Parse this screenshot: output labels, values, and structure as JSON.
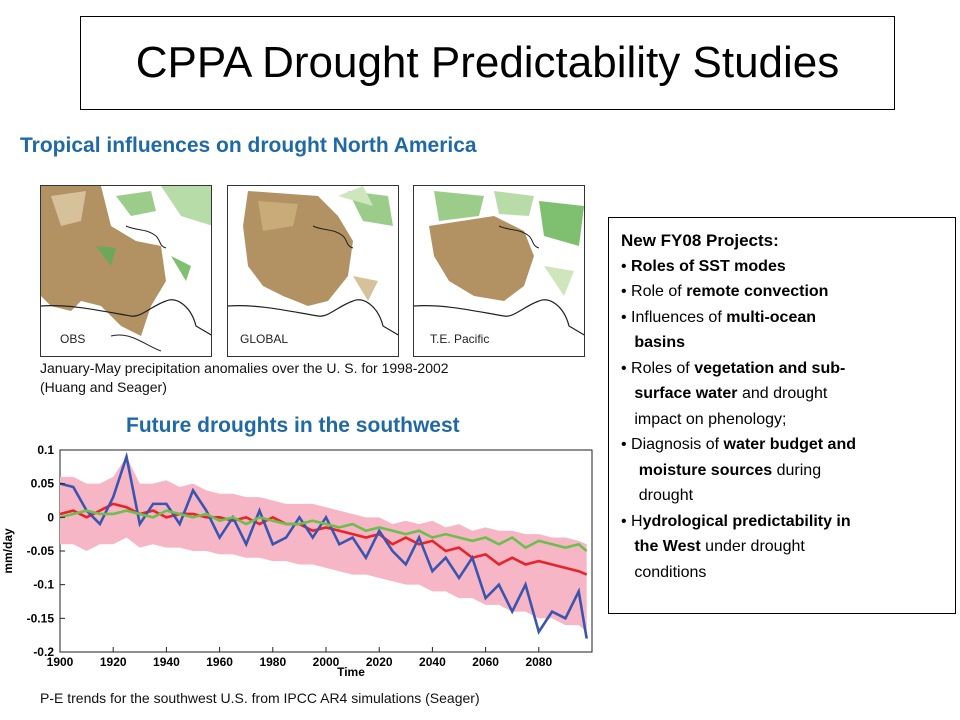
{
  "title": "CPPA Drought Predictability Studies",
  "tropical_heading": "Tropical influences on drought North America",
  "maps": [
    {
      "label": "OBS"
    },
    {
      "label": "GLOBAL"
    },
    {
      "label": "T.E. Pacific"
    }
  ],
  "map_caption_line1": "January-May precipitation anomalies over the U. S. for 1998-2002",
  "map_caption_line2": "(Huang and Seager)",
  "future_heading": "Future droughts in the southwest",
  "chart_caption": "P-E trends for the southwest U.S. from IPCC AR4 simulations (Seager)",
  "projects": {
    "title": "New FY08 Projects:",
    "items": [
      {
        "lines": [
          [
            "• ",
            ""
          ],
          [
            "Roles of SST modes",
            "b"
          ]
        ]
      },
      {
        "lines": [
          [
            "• Role of ",
            ""
          ],
          [
            "remote convection",
            "b"
          ]
        ]
      },
      {
        "lines": [
          [
            "• Influences of ",
            ""
          ],
          [
            "multi-ocean",
            "b"
          ]
        ]
      },
      {
        "lines": [
          [
            "   ",
            ""
          ],
          [
            "basins",
            "b"
          ]
        ]
      },
      {
        "lines": [
          [
            "• Roles of ",
            ""
          ],
          [
            "vegetation and sub-",
            "b"
          ]
        ]
      },
      {
        "lines": [
          [
            "   ",
            ""
          ],
          [
            "surface water",
            "b"
          ],
          [
            " and drought",
            ""
          ]
        ]
      },
      {
        "lines": [
          [
            "   impact on phenology;",
            ""
          ]
        ]
      },
      {
        "lines": [
          [
            "• Diagnosis of ",
            ""
          ],
          [
            "water budget and",
            "b"
          ]
        ]
      },
      {
        "lines": [
          [
            "    ",
            ""
          ],
          [
            "moisture sources",
            "b"
          ],
          [
            " during",
            ""
          ]
        ]
      },
      {
        "lines": [
          [
            "    drought",
            ""
          ]
        ]
      },
      {
        "lines": [
          [
            "• H",
            ""
          ],
          [
            "ydrological predictability in",
            "b"
          ]
        ]
      },
      {
        "lines": [
          [
            "   ",
            ""
          ],
          [
            "the West",
            "b"
          ],
          [
            " under drought",
            ""
          ]
        ]
      },
      {
        "lines": [
          [
            "   conditions",
            ""
          ]
        ]
      }
    ]
  },
  "colors": {
    "heading": "#1f6aa6",
    "obs_red": "#e8232a",
    "model_blue": "#3a55b0",
    "green": "#6cbf4c",
    "band_pink": "#f7b6c6"
  },
  "chart_data": {
    "type": "line",
    "xlabel": "Time",
    "ylabel": "mm/day",
    "xlim": [
      1900,
      2100
    ],
    "ylim": [
      -0.2,
      0.1
    ],
    "xticks": [
      1900,
      1920,
      1940,
      1960,
      1980,
      2000,
      2020,
      2040,
      2060,
      2080
    ],
    "yticks": [
      0.1,
      0.05,
      0,
      -0.05,
      -0.1,
      -0.15,
      -0.2
    ],
    "x": [
      1900,
      1905,
      1910,
      1915,
      1920,
      1925,
      1930,
      1935,
      1940,
      1945,
      1950,
      1955,
      1960,
      1965,
      1970,
      1975,
      1980,
      1985,
      1990,
      1995,
      2000,
      2005,
      2010,
      2015,
      2020,
      2025,
      2030,
      2035,
      2040,
      2045,
      2050,
      2055,
      2060,
      2065,
      2070,
      2075,
      2080,
      2085,
      2090,
      2095,
      2098
    ],
    "series": [
      {
        "color": "red",
        "values": [
          0.005,
          0.01,
          0.0,
          0.01,
          0.02,
          0.015,
          0.005,
          0.01,
          0.0,
          0.005,
          0.005,
          0.0,
          0.0,
          -0.005,
          0.0,
          -0.01,
          0.0,
          -0.01,
          -0.01,
          -0.02,
          -0.015,
          -0.02,
          -0.025,
          -0.03,
          -0.025,
          -0.04,
          -0.03,
          -0.04,
          -0.035,
          -0.05,
          -0.045,
          -0.06,
          -0.055,
          -0.07,
          -0.06,
          -0.07,
          -0.065,
          -0.07,
          -0.075,
          -0.08,
          -0.085
        ]
      },
      {
        "color": "blue",
        "values": [
          0.05,
          0.045,
          0.01,
          -0.01,
          0.03,
          0.09,
          -0.01,
          0.02,
          0.02,
          -0.01,
          0.04,
          0.01,
          -0.03,
          0.0,
          -0.04,
          0.01,
          -0.04,
          -0.03,
          0.0,
          -0.03,
          0.0,
          -0.04,
          -0.03,
          -0.06,
          -0.02,
          -0.05,
          -0.07,
          -0.03,
          -0.08,
          -0.06,
          -0.09,
          -0.06,
          -0.12,
          -0.1,
          -0.14,
          -0.1,
          -0.17,
          -0.14,
          -0.15,
          -0.11,
          -0.18
        ]
      },
      {
        "color": "green",
        "values": [
          0.0,
          0.005,
          0.01,
          0.005,
          0.005,
          0.01,
          0.005,
          0.0,
          0.01,
          0.005,
          0.0,
          0.005,
          -0.005,
          0.0,
          -0.01,
          0.0,
          -0.005,
          -0.01,
          -0.01,
          -0.005,
          -0.01,
          -0.015,
          -0.01,
          -0.02,
          -0.015,
          -0.02,
          -0.025,
          -0.02,
          -0.03,
          -0.025,
          -0.03,
          -0.035,
          -0.03,
          -0.04,
          -0.03,
          -0.045,
          -0.035,
          -0.04,
          -0.045,
          -0.04,
          -0.05
        ]
      }
    ],
    "band": {
      "upper": [
        0.06,
        0.06,
        0.05,
        0.05,
        0.06,
        0.09,
        0.05,
        0.05,
        0.055,
        0.045,
        0.05,
        0.04,
        0.035,
        0.035,
        0.03,
        0.03,
        0.025,
        0.02,
        0.02,
        0.02,
        0.015,
        0.01,
        0.005,
        0.0,
        0.0,
        -0.01,
        -0.005,
        -0.01,
        -0.005,
        -0.015,
        -0.01,
        -0.02,
        -0.015,
        -0.02,
        -0.02,
        -0.025,
        -0.025,
        -0.03,
        -0.03,
        -0.035,
        -0.04
      ],
      "lower": [
        -0.04,
        -0.04,
        -0.05,
        -0.04,
        -0.04,
        -0.03,
        -0.045,
        -0.04,
        -0.045,
        -0.045,
        -0.05,
        -0.05,
        -0.055,
        -0.055,
        -0.06,
        -0.06,
        -0.065,
        -0.065,
        -0.07,
        -0.07,
        -0.075,
        -0.08,
        -0.085,
        -0.085,
        -0.09,
        -0.095,
        -0.1,
        -0.1,
        -0.11,
        -0.11,
        -0.12,
        -0.12,
        -0.13,
        -0.13,
        -0.14,
        -0.14,
        -0.15,
        -0.15,
        -0.16,
        -0.16,
        -0.17
      ]
    }
  }
}
